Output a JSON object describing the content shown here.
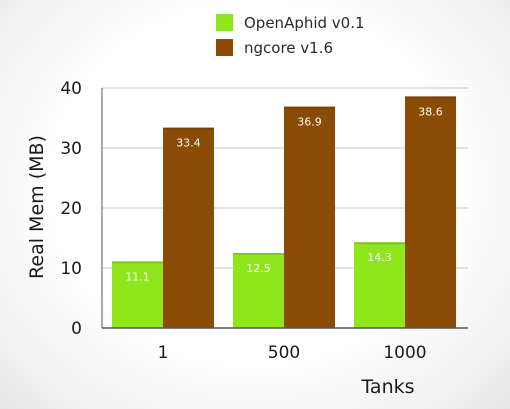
{
  "chart_data": {
    "type": "bar",
    "title": "",
    "xlabel": "Tanks",
    "ylabel": "Real Mem (MB)",
    "categories": [
      "1",
      "500",
      "1000"
    ],
    "ylim": [
      0,
      40
    ],
    "yticks": [
      "0",
      "10",
      "20",
      "30",
      "40"
    ],
    "grid": true,
    "legend_position": "top-center",
    "series": [
      {
        "name": "OpenAphid v0.1",
        "color": "#8fe61a",
        "values": [
          11.1,
          12.5,
          14.3
        ],
        "labels": [
          "11.1",
          "12.5",
          "14.3"
        ]
      },
      {
        "name": "ngcore v1.6",
        "color": "#8a4b05",
        "values": [
          33.4,
          36.9,
          38.6
        ],
        "labels": [
          "33.4",
          "36.9",
          "38.6"
        ]
      }
    ]
  }
}
